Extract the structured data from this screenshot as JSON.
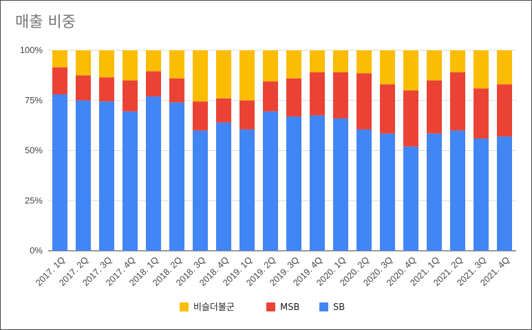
{
  "chart_data": {
    "type": "bar",
    "stacked": true,
    "percent": true,
    "title": "매출 비중",
    "categories": [
      "2017. 1Q",
      "2017. 2Q",
      "2017. 3Q",
      "2017. 4Q",
      "2018. 1Q",
      "2018. 2Q",
      "2018. 3Q",
      "2018. 4Q",
      "2019. 1Q",
      "2019. 2Q",
      "2019. 3Q",
      "2019. 4Q",
      "2020. 1Q",
      "2020. 2Q",
      "2020. 3Q",
      "2020. 4Q",
      "2021. 1Q",
      "2021. 2Q",
      "2021. 3Q",
      "2021. 4Q"
    ],
    "series": [
      {
        "name": "SB",
        "color": "#4285f4",
        "values": [
          78,
          75,
          74.5,
          69.5,
          77,
          74,
          60,
          64,
          60.5,
          69.5,
          67,
          67.5,
          66,
          60.5,
          58.5,
          52,
          58.5,
          60,
          56,
          57
        ]
      },
      {
        "name": "MSB",
        "color": "#ea4335",
        "values": [
          13.5,
          12.5,
          12,
          15.5,
          12.5,
          12,
          14.5,
          12,
          14.5,
          15,
          19,
          21.5,
          23,
          28,
          24.5,
          28,
          26.5,
          29,
          25,
          26
        ]
      },
      {
        "name": "비슬더볼군",
        "color": "#fbbc04",
        "values": [
          8.5,
          12.5,
          13.5,
          15,
          10.5,
          14,
          25.5,
          24,
          25,
          15.5,
          14,
          11,
          11,
          11.5,
          17,
          20,
          15,
          11,
          19,
          17
        ]
      }
    ],
    "yticks": [
      "0%",
      "25%",
      "50%",
      "75%",
      "100%"
    ],
    "ylim": [
      0,
      100
    ],
    "legend_position": "bottom",
    "legend_order": [
      "비슬더볼군",
      "MSB",
      "SB"
    ],
    "grid": true
  }
}
